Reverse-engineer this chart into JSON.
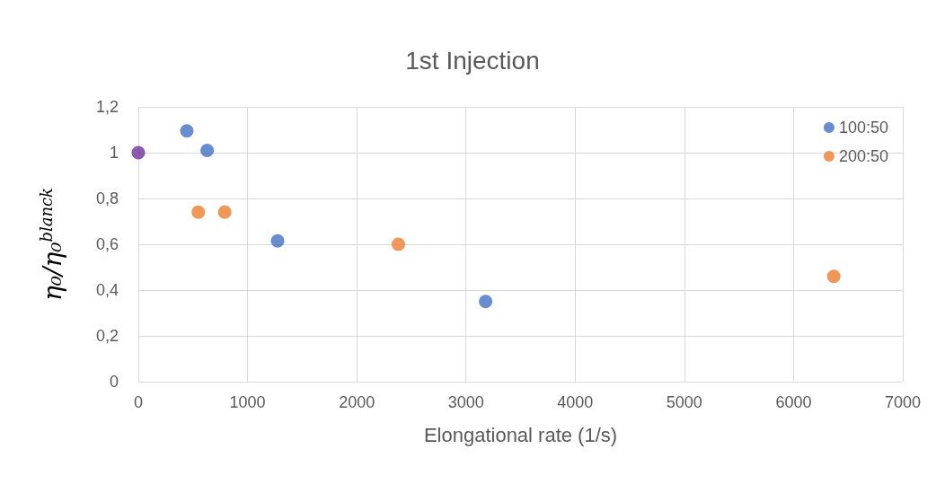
{
  "chart_data": {
    "type": "scatter",
    "title": "1st Injection",
    "xlabel": "Elongational rate (1/s)",
    "ylabel": "η₀/η₀$^{blanck}$",
    "series": [
      {
        "name": "100:50",
        "color": "#4472c4",
        "x": [
          444,
          630,
          1275,
          3180
        ],
        "values": [
          1.095,
          1.01,
          0.615,
          0.35
        ]
      },
      {
        "name": "200:50",
        "color": "#ed7d31",
        "x": [
          549,
          791,
          2381,
          6368
        ],
        "values": [
          0.74,
          0.74,
          0.6,
          0.46
        ]
      },
      {
        "color": "#7030a0",
        "x": [
          0
        ],
        "values": [
          1
        ]
      }
    ],
    "xlim": [
      0,
      7000
    ],
    "xticks": [
      0,
      1000,
      2000,
      3000,
      4000,
      5000,
      6000,
      7000
    ],
    "ylim": [
      0,
      1.2
    ],
    "yticks": [
      0,
      {
        "value": 0.2,
        "label": "0,2"
      },
      {
        "value": 0.4,
        "label": "0,4"
      },
      {
        "value": 0.6,
        "label": "0,6"
      },
      {
        "value": 0.8,
        "label": "0,8"
      },
      1,
      {
        "value": 1.2,
        "label": "1,2"
      }
    ],
    "grid": true,
    "legend": "top right",
    "marker": "circle"
  }
}
